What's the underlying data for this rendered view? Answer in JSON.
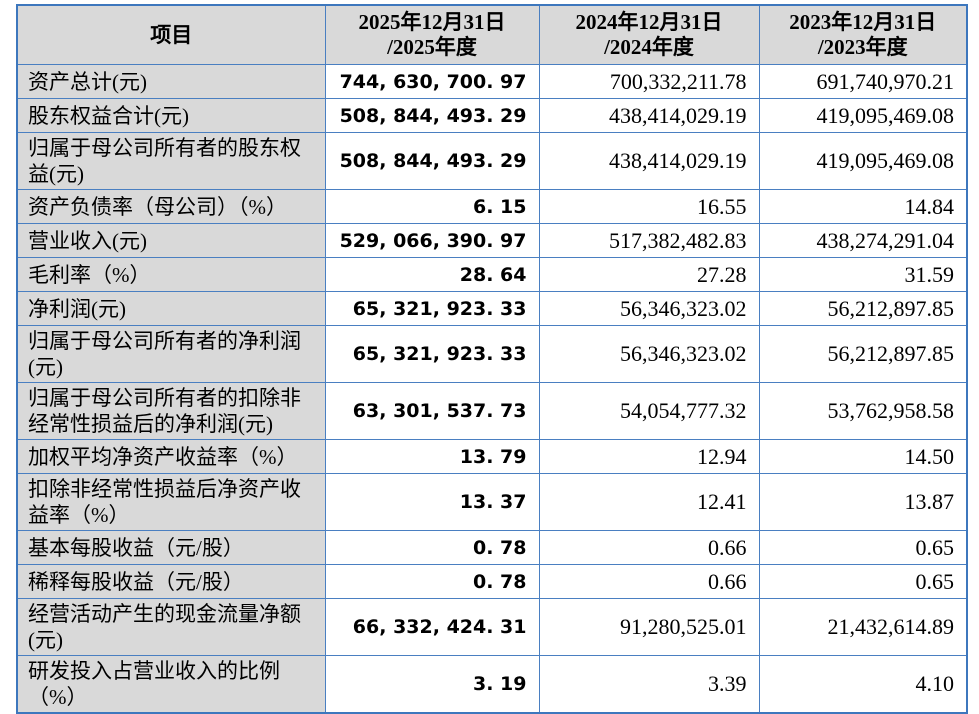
{
  "page": {
    "background_color": "#ffffff"
  },
  "table": {
    "styles": {
      "border_color": "#4a7fc1",
      "outer_border_color": "#3d77bd",
      "header_bg": "#d9d9d9",
      "label_column_bg": "#d9d9d9",
      "value_cell_bg": "#ffffff",
      "text_color": "#000000"
    },
    "header": {
      "item": "项目",
      "col2025": {
        "line1": "2025年12月31日",
        "line2": "/2025年度"
      },
      "col2024": {
        "line1": "2024年12月31日",
        "line2": "/2024年度"
      },
      "col2023": {
        "line1": "2023年12月31日",
        "line2": "/2023年度"
      }
    },
    "rows": [
      {
        "label": "资产总计(元)",
        "v2025": "744, 630, 700. 97",
        "v2024": "700,332,211.78",
        "v2023": "691,740,970.21"
      },
      {
        "label": "股东权益合计(元)",
        "v2025": "508, 844, 493. 29",
        "v2024": "438,414,029.19",
        "v2023": "419,095,469.08"
      },
      {
        "label": "归属于母公司所有者的股东权益(元)",
        "v2025": "508, 844, 493. 29",
        "v2024": "438,414,029.19",
        "v2023": "419,095,469.08"
      },
      {
        "label": "资产负债率（母公司）（%）",
        "v2025": "6. 15",
        "v2024": "16.55",
        "v2023": "14.84"
      },
      {
        "label": "营业收入(元)",
        "v2025": "529, 066, 390. 97",
        "v2024": "517,382,482.83",
        "v2023": "438,274,291.04"
      },
      {
        "label": "毛利率（%）",
        "v2025": "28. 64",
        "v2024": "27.28",
        "v2023": "31.59"
      },
      {
        "label": "净利润(元)",
        "v2025": "65, 321, 923. 33",
        "v2024": "56,346,323.02",
        "v2023": "56,212,897.85"
      },
      {
        "label": "归属于母公司所有者的净利润(元)",
        "v2025": "65, 321, 923. 33",
        "v2024": "56,346,323.02",
        "v2023": "56,212,897.85"
      },
      {
        "label": "归属于母公司所有者的扣除非经常性损益后的净利润(元)",
        "v2025": "63, 301, 537. 73",
        "v2024": "54,054,777.32",
        "v2023": "53,762,958.58"
      },
      {
        "label": "加权平均净资产收益率（%）",
        "v2025": "13. 79",
        "v2024": "12.94",
        "v2023": "14.50"
      },
      {
        "label": "扣除非经常性损益后净资产收益率（%）",
        "v2025": "13. 37",
        "v2024": "12.41",
        "v2023": "13.87"
      },
      {
        "label": "基本每股收益（元/股）",
        "v2025": "0. 78",
        "v2024": "0.66",
        "v2023": "0.65"
      },
      {
        "label": "稀释每股收益（元/股）",
        "v2025": "0. 78",
        "v2024": "0.66",
        "v2023": "0.65"
      },
      {
        "label": "经营活动产生的现金流量净额(元)",
        "v2025": "66, 332, 424. 31",
        "v2024": "91,280,525.01",
        "v2023": "21,432,614.89"
      },
      {
        "label": "研发投入占营业收入的比例（%）",
        "v2025": "3. 19",
        "v2024": "3.39",
        "v2023": "4.10"
      }
    ]
  }
}
